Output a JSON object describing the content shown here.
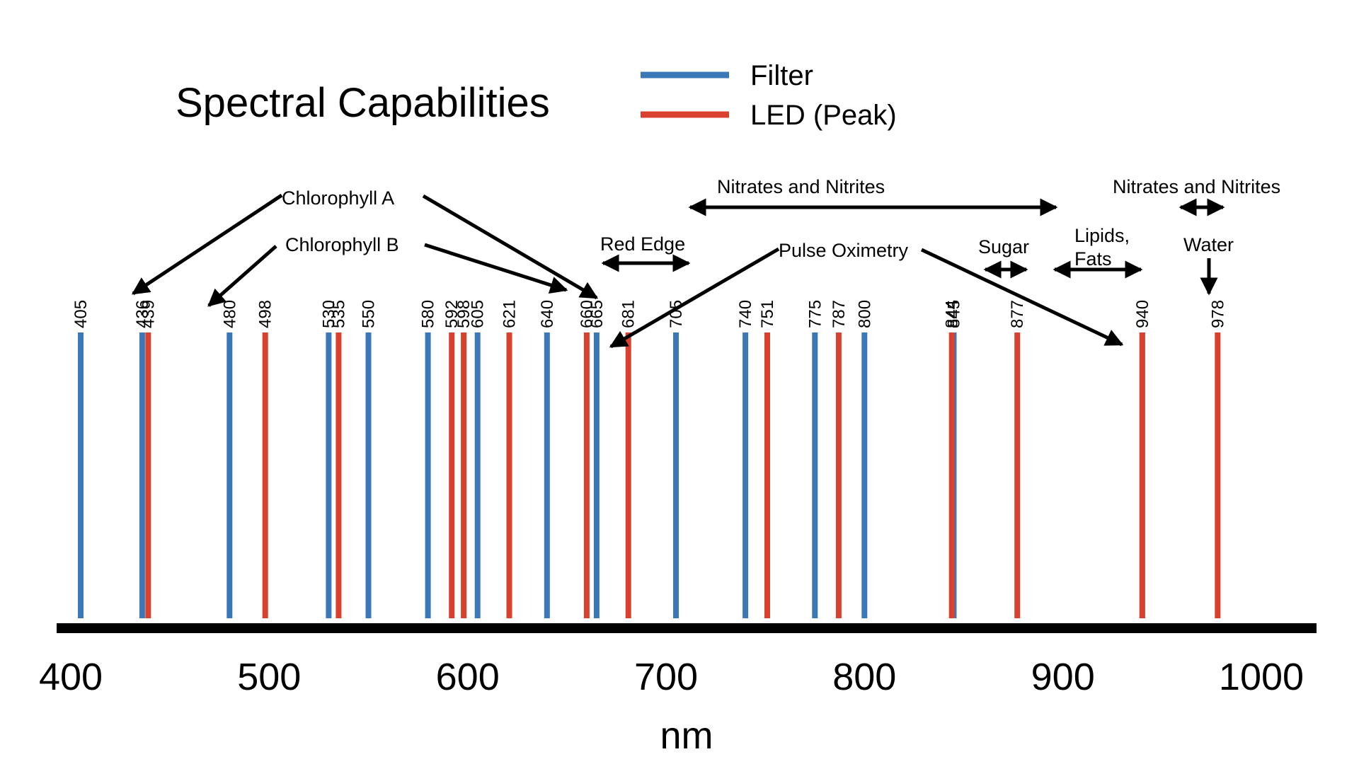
{
  "chart_data": {
    "type": "bar",
    "title": "Spectral Capabilities",
    "xlabel": "nm",
    "ylabel": "",
    "xlim": [
      400,
      1000
    ],
    "xticks": [
      "400",
      "500",
      "600",
      "700",
      "800",
      "900",
      "1000"
    ],
    "legend_position": "top-center",
    "series": [
      {
        "name": "Filter",
        "color": "#3a78b8",
        "values": [
          405,
          436,
          480,
          530,
          550,
          580,
          605,
          640,
          665,
          705,
          740,
          775,
          800,
          845,
          940
        ]
      },
      {
        "name": "LED (Peak)",
        "color": "#d9412e",
        "values": [
          439,
          498,
          535,
          592,
          598,
          621,
          660,
          681,
          751,
          787,
          844,
          877,
          940,
          978
        ]
      }
    ],
    "annotations": {
      "chlorophyll_a": "Chlorophyll A",
      "chlorophyll_b": "Chlorophyll B",
      "red_edge": "Red Edge",
      "pulse_oximetry": "Pulse Oximetry",
      "nitrates_1": "Nitrates and Nitrites",
      "nitrates_2": "Nitrates and Nitrites",
      "sugar": "Sugar",
      "lipids_line1": "Lipids,",
      "lipids_line2": "Fats",
      "water": "Water"
    }
  }
}
